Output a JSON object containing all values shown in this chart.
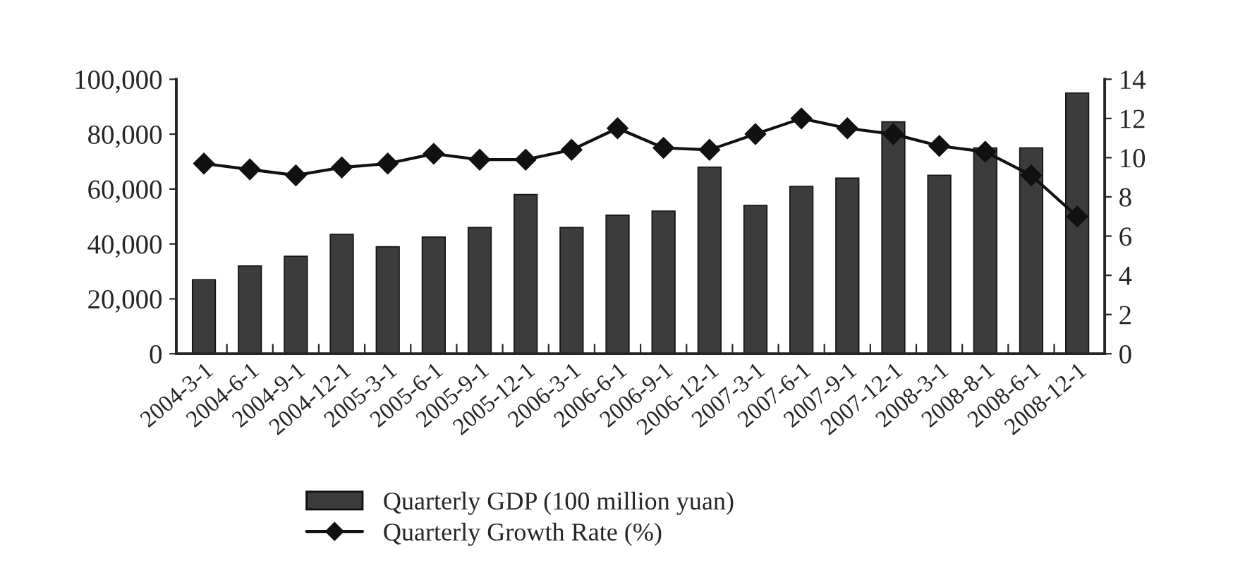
{
  "chart_data": {
    "type": "bar",
    "categories": [
      "2004-3-1",
      "2004-6-1",
      "2004-9-1",
      "2004-12-1",
      "2005-3-1",
      "2005-6-1",
      "2005-9-1",
      "2005-12-1",
      "2006-3-1",
      "2006-6-1",
      "2006-9-1",
      "2006-12-1",
      "2007-3-1",
      "2007-6-1",
      "2007-9-1",
      "2007-12-1",
      "2008-3-1",
      "2008-8-1",
      "2008-6-1",
      "2008-12-1"
    ],
    "series": [
      {
        "name": "Quarterly GDP (100 million yuan)",
        "color": "#3c3c3c",
        "values": [
          27000,
          32000,
          35500,
          43500,
          39000,
          42500,
          46000,
          58000,
          46000,
          50500,
          52000,
          68000,
          54000,
          61000,
          64000,
          84500,
          65000,
          75000,
          75000,
          95000
        ]
      },
      {
        "name": "Quarterly Growth Rate (%)",
        "type": "line",
        "axis": "y2",
        "color": "#111111",
        "values": [
          9.7,
          9.4,
          9.1,
          9.5,
          9.7,
          10.2,
          9.9,
          9.9,
          10.4,
          11.5,
          10.5,
          10.4,
          11.2,
          12.0,
          11.5,
          11.2,
          10.6,
          10.3,
          9.1,
          7.0
        ]
      }
    ],
    "ylim": [
      0,
      100000
    ],
    "yticks": [
      0,
      {
        "value": 20000,
        "label": "20,000"
      },
      {
        "value": 40000,
        "label": "40,000"
      },
      {
        "value": 60000,
        "label": "60,000"
      },
      {
        "value": 80000,
        "label": "80,000"
      },
      {
        "value": 100000,
        "label": "100,000"
      }
    ],
    "y2lim": [
      0,
      14
    ],
    "y2ticks": [
      0,
      2,
      4,
      6,
      8,
      10,
      12,
      14
    ],
    "marker": "diamond",
    "line_style": "solid",
    "grid": false,
    "legend": "bottom"
  }
}
